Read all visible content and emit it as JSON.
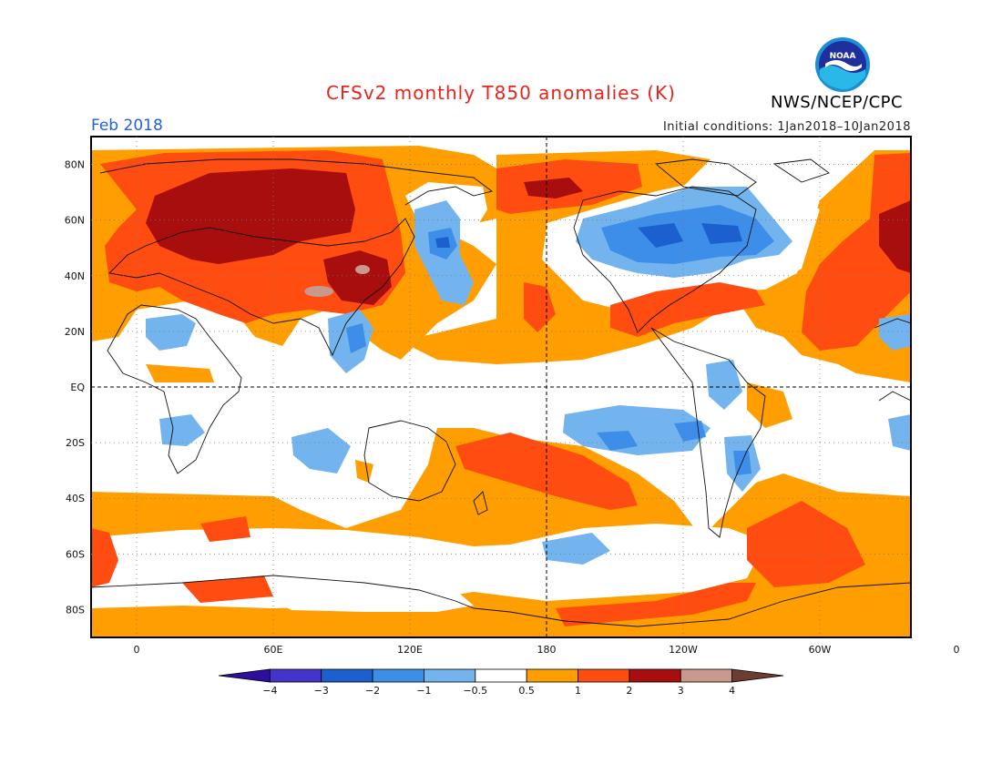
{
  "title": "CFSv2 monthly T850 anomalies (K)",
  "forecast_month": "Feb 2018",
  "initial_conditions": "Initial conditions: 1Jan2018–10Jan2018",
  "organization": "NWS/NCEP/CPC",
  "logo": {
    "text": "NOAA",
    "icon": "noaa-logo"
  },
  "map": {
    "lat_labels": [
      "80N",
      "60N",
      "40N",
      "20N",
      "EQ",
      "20S",
      "40S",
      "60S",
      "80S"
    ],
    "lon_labels": [
      "0",
      "60E",
      "120E",
      "180",
      "120W",
      "60W",
      "0"
    ]
  },
  "colorbar": {
    "colors": [
      "#2e0e9c",
      "#4434cc",
      "#1c5fcf",
      "#3d8ee8",
      "#73b4ef",
      "#ffffff",
      "#ff9e00",
      "#ff4c10",
      "#a80e0e",
      "#c89a8e",
      "#6b3e31"
    ],
    "tick_labels": [
      "−4",
      "−3",
      "−2",
      "−1",
      "−0.5",
      "0.5",
      "1",
      "2",
      "3",
      "4"
    ]
  },
  "palette": {
    "light_blue": "#73b4ef",
    "mid_blue": "#3d8ee8",
    "dark_blue": "#1c5fcf",
    "orange": "#ff9e00",
    "red": "#ff4c10",
    "dark_red": "#a80e0e",
    "tan": "#c89a8e"
  }
}
